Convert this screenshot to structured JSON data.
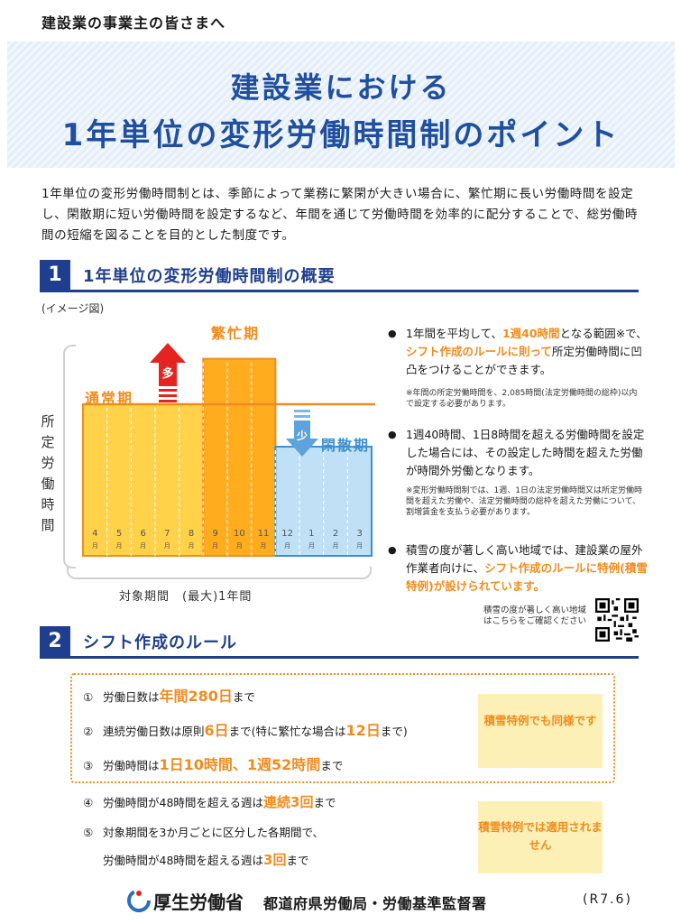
{
  "top_label": "建設業の事業主の皆さまへ",
  "title": {
    "line1": "建設業における",
    "line2": "1年単位の変形労働時間制のポイント"
  },
  "intro": "1年単位の変形労働時間制とは、季節によって業務に繁閑が大きい場合に、繁忙期に長い労働時間を設定し、閑散期に短い労働時間を設定するなど、年間を通じて労働時間を効率的に配分することで、総労働時間の短縮を図ることを目的とした制度です。",
  "section1": {
    "num": "1",
    "title": "1年単位の変形労働時間制の概要"
  },
  "image_note": "(イメージ図)",
  "chart": {
    "ylabel": "所定労働時間",
    "xlabel": "対象期間　(最大)1年間",
    "normal_label": "通常期",
    "busy_label": "繁忙期",
    "idle_label": "閑散期",
    "up_arrow_label": "多",
    "down_arrow_label": "少",
    "month_suffix": "月",
    "colors": {
      "normal": "#ffd24a",
      "busy": "#ffad1f",
      "idle": "#bfe0f5",
      "line": "#f08c1f",
      "idle_border": "#3d8fd1"
    }
  },
  "chart_data": {
    "type": "bar",
    "categories": [
      "4",
      "5",
      "6",
      "7",
      "8",
      "9",
      "10",
      "11",
      "12",
      "1",
      "2",
      "3"
    ],
    "series": [
      {
        "name": "通常期",
        "values": [
          1.0,
          1.0,
          1.0,
          1.0,
          1.0,
          null,
          null,
          null,
          null,
          null,
          null,
          null
        ]
      },
      {
        "name": "繁忙期",
        "values": [
          null,
          null,
          null,
          null,
          null,
          1.3,
          1.3,
          1.3,
          null,
          null,
          null,
          null
        ]
      },
      {
        "name": "閑散期",
        "values": [
          null,
          null,
          null,
          null,
          null,
          null,
          null,
          null,
          0.72,
          0.72,
          0.72,
          0.72
        ]
      }
    ],
    "reference_level": 1.0,
    "ylabel": "所定労働時間",
    "xlabel": "対象期間　(最大)1年間"
  },
  "bullets": [
    {
      "parts": [
        "1年間を平均して、",
        "1週40時間",
        "となる範囲※で、",
        "シフト作成のルールに則って",
        "所定労働時間に凹凸をつけることができます。"
      ],
      "orange": [
        1,
        3
      ]
    },
    {
      "parts": [
        "1週40時間、1日8時間を超える労働時間を設定した場合には、その設定した時間を超えた労働が時間外労働となります。"
      ],
      "orange": []
    },
    {
      "parts": [
        "積雪の度が著しく高い地域では、建設業の屋外作業者向けに、",
        "シフト作成のルールに特例(積雪特例)が設けられています。"
      ],
      "orange": [
        1
      ]
    }
  ],
  "notes": {
    "n1": "※年間の所定労働時間を、2,085時間(法定労働時間の総枠)以内で設定する必要があります。",
    "n2": "※変形労働時間制では、1週、1日の法定労働時間又は所定労働時間を超えた労働や、法定労働時間の総枠を超えた労働について、割増賃金を支払う必要があります。"
  },
  "qr_caption": "積雪の度が著しく高い地域はこちらをご確認ください",
  "section2": {
    "num": "2",
    "title": "シフト作成のルール"
  },
  "rules": [
    {
      "n": "①",
      "pre": "労働日数は",
      "hl": "年間280日",
      "post": "まで"
    },
    {
      "n": "②",
      "pre": "連続労働日数は原則",
      "hl": "6日",
      "mid": "まで(特に繁忙な場合は",
      "hl2": "12日",
      "post": "まで)"
    },
    {
      "n": "③",
      "pre": "労働時間は",
      "hl": "1日10時間、1週52時間",
      "post": "まで"
    },
    {
      "n": "④",
      "pre": "労働時間が48時間を超える週は",
      "hl": "連続3回",
      "post": "まで"
    },
    {
      "n": "⑤",
      "pre": "対象期間を3か月ごとに区分した各期間で、",
      "hl": "",
      "post": ""
    },
    {
      "n": "",
      "pre": "労働時間が48時間を超える週は",
      "hl": "3回",
      "post": "まで"
    }
  ],
  "note_boxes": [
    "積雪特例でも同様です",
    "積雪特例では適用されません"
  ],
  "footer": {
    "ministry": "厚生労働省",
    "office": "都道府県労働局・労働基準監督署",
    "date": "(R7.6)"
  }
}
